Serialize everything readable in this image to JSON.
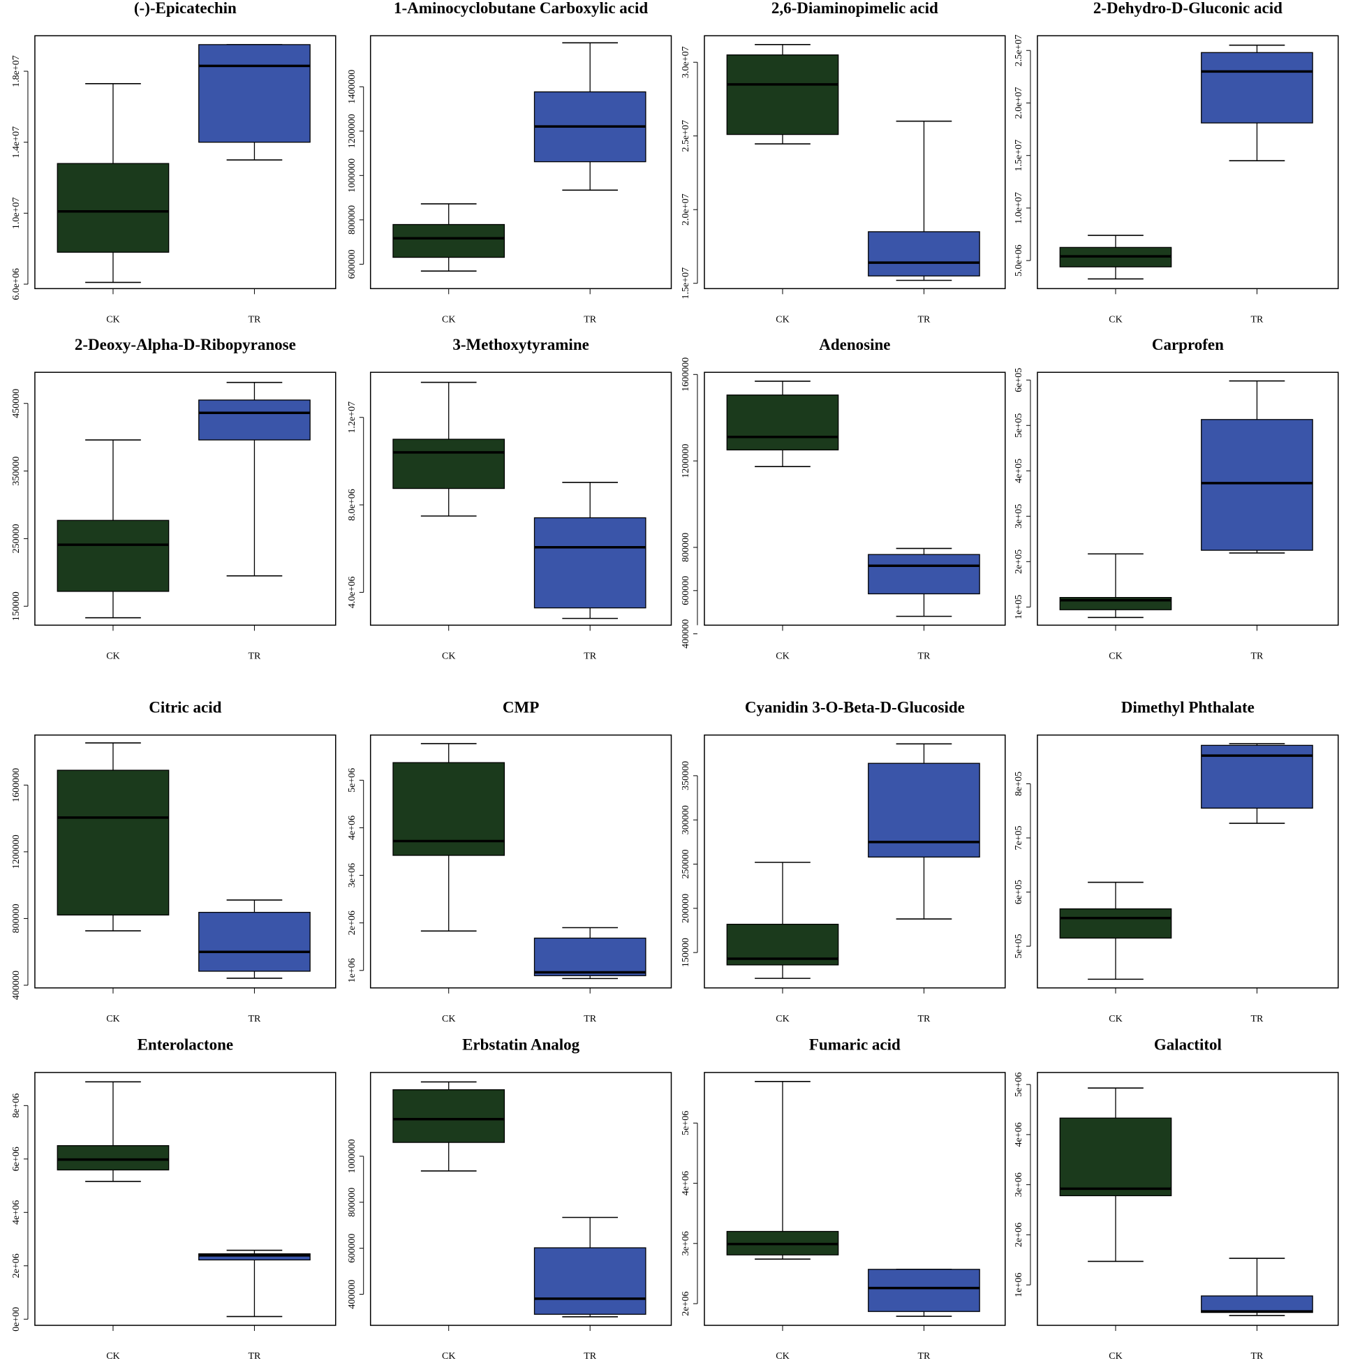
{
  "chart_data": [
    {
      "type": "box",
      "title": "(-)-Epicatechin",
      "categories": [
        "CK",
        "TR"
      ],
      "colors": [
        "#1b3a1c",
        "#3a55a9"
      ],
      "ylim": [
        5750000,
        20000000
      ],
      "yticks": [
        {
          "value": 6000000,
          "label": "6.0e+06"
        },
        {
          "value": 10000000,
          "label": "1.0e+07"
        },
        {
          "value": 14000000,
          "label": "1.4e+07"
        },
        {
          "value": 18000000,
          "label": "1.8e+07"
        }
      ],
      "boxes": [
        {
          "min": 6100000,
          "q1": 7800000,
          "median": 10100000,
          "q3": 12800000,
          "max": 17300000
        },
        {
          "min": 13000000,
          "q1": 14000000,
          "median": 18300000,
          "q3": 19500000,
          "max": 19500000
        }
      ]
    },
    {
      "type": "box",
      "title": "1-Aminocyclobutane Carboxylic acid",
      "categories": [
        "CK",
        "TR"
      ],
      "colors": [
        "#1b3a1c",
        "#3a55a9"
      ],
      "ylim": [
        490000,
        1630000
      ],
      "yticks": [
        600000,
        800000,
        1000000,
        1200000,
        1400000
      ],
      "boxes": [
        {
          "min": 569000,
          "q1": 631000,
          "median": 717000,
          "q3": 779000,
          "max": 872000
        },
        {
          "min": 934000,
          "q1": 1062000,
          "median": 1221000,
          "q3": 1377000,
          "max": 1598000
        }
      ]
    },
    {
      "type": "box",
      "title": "2,6-Diaminopimelic acid",
      "categories": [
        "CK",
        "TR"
      ],
      "colors": [
        "#1b3a1c",
        "#3a55a9"
      ],
      "ylim": [
        14640000,
        31800000
      ],
      "yticks": [
        {
          "value": 15000000,
          "label": "1.5e+07"
        },
        {
          "value": 20000000,
          "label": "2.0e+07"
        },
        {
          "value": 25000000,
          "label": "2.5e+07"
        },
        {
          "value": 30000000,
          "label": "3.0e+07"
        }
      ],
      "boxes": [
        {
          "min": 24460000,
          "q1": 25100000,
          "median": 28500000,
          "q3": 30500000,
          "max": 31200000
        },
        {
          "min": 15200000,
          "q1": 15500000,
          "median": 16400000,
          "q3": 18500000,
          "max": 26000000
        }
      ]
    },
    {
      "type": "box",
      "title": "2-Dehydro-D-Gluconic acid",
      "categories": [
        "CK",
        "TR"
      ],
      "colors": [
        "#1b3a1c",
        "#3a55a9"
      ],
      "ylim": [
        2330000,
        26400000
      ],
      "yticks": [
        {
          "value": 5000000,
          "label": "5.0e+06"
        },
        {
          "value": 10000000,
          "label": "1.0e+07"
        },
        {
          "value": 15000000,
          "label": "1.5e+07"
        },
        {
          "value": 20000000,
          "label": "2.0e+07"
        },
        {
          "value": 25000000,
          "label": "2.5e+07"
        }
      ],
      "boxes": [
        {
          "min": 3250000,
          "q1": 4400000,
          "median": 5400000,
          "q3": 6250000,
          "max": 7400000
        },
        {
          "min": 14500000,
          "q1": 18100000,
          "median": 23000000,
          "q3": 24800000,
          "max": 25500000
        }
      ]
    },
    {
      "type": "box",
      "title": "2-Deoxy-Alpha-D-Ribopyranose",
      "categories": [
        "CK",
        "TR"
      ],
      "colors": [
        "#1b3a1c",
        "#3a55a9"
      ],
      "ylim": [
        122000,
        496000
      ],
      "yticks": [
        150000,
        250000,
        350000,
        450000
      ],
      "boxes": [
        {
          "min": 133000,
          "q1": 172000,
          "median": 241000,
          "q3": 277000,
          "max": 396000
        },
        {
          "min": 195000,
          "q1": 396000,
          "median": 436000,
          "q3": 455000,
          "max": 481000
        }
      ]
    },
    {
      "type": "box",
      "title": "3-Methoxytyramine",
      "categories": [
        "CK",
        "TR"
      ],
      "colors": [
        "#1b3a1c",
        "#3a55a9"
      ],
      "ylim": [
        2500000,
        14060000
      ],
      "yticks": [
        {
          "value": 4000000,
          "label": "4.0e+06"
        },
        {
          "value": 8000000,
          "label": "8.0e+06"
        },
        {
          "value": 12000000,
          "label": "1.2e+07"
        }
      ],
      "boxes": [
        {
          "min": 7490000,
          "q1": 8750000,
          "median": 10400000,
          "q3": 11000000,
          "max": 13600000
        },
        {
          "min": 2810000,
          "q1": 3290000,
          "median": 6060000,
          "q3": 7410000,
          "max": 9030000
        }
      ]
    },
    {
      "type": "box",
      "title": "Adenosine",
      "categories": [
        "CK",
        "TR"
      ],
      "colors": [
        "#1b3a1c",
        "#3a55a9"
      ],
      "ylim": [
        440000,
        1610000
      ],
      "yticks": [
        400000,
        600000,
        800000,
        1200000,
        1600000
      ],
      "boxes": [
        {
          "min": 1174000,
          "q1": 1251000,
          "median": 1311000,
          "q3": 1505000,
          "max": 1569000
        },
        {
          "min": 481000,
          "q1": 585000,
          "median": 715000,
          "q3": 767000,
          "max": 795000
        }
      ]
    },
    {
      "type": "box",
      "title": "Carprofen",
      "categories": [
        "CK",
        "TR"
      ],
      "colors": [
        "#1b3a1c",
        "#3a55a9"
      ],
      "ylim": [
        60000,
        617000
      ],
      "yticks": [
        {
          "value": 100000,
          "label": "1e+05"
        },
        {
          "value": 200000,
          "label": "2e+05"
        },
        {
          "value": 300000,
          "label": "3e+05"
        },
        {
          "value": 400000,
          "label": "4e+05"
        },
        {
          "value": 500000,
          "label": "5e+05"
        },
        {
          "value": 600000,
          "label": "6e+05"
        }
      ],
      "boxes": [
        {
          "min": 77000,
          "q1": 94000,
          "median": 115000,
          "q3": 121000,
          "max": 217000
        },
        {
          "min": 219000,
          "q1": 225000,
          "median": 373000,
          "q3": 513000,
          "max": 598000
        }
      ]
    },
    {
      "type": "box",
      "title": "Citric acid",
      "categories": [
        "CK",
        "TR"
      ],
      "colors": [
        "#1b3a1c",
        "#3a55a9"
      ],
      "ylim": [
        384000,
        1900000
      ],
      "yticks": [
        400000,
        800000,
        1200000,
        1600000
      ],
      "boxes": [
        {
          "min": 726000,
          "q1": 821000,
          "median": 1405000,
          "q3": 1689000,
          "max": 1853000
        },
        {
          "min": 442000,
          "q1": 484000,
          "median": 600000,
          "q3": 837000,
          "max": 911000
        }
      ]
    },
    {
      "type": "box",
      "title": "CMP",
      "categories": [
        "CK",
        "TR"
      ],
      "colors": [
        "#1b3a1c",
        "#3a55a9"
      ],
      "ylim": [
        633000,
        5950000
      ],
      "yticks": [
        {
          "value": 1000000,
          "label": "1e+06"
        },
        {
          "value": 2000000,
          "label": "2e+06"
        },
        {
          "value": 3000000,
          "label": "3e+06"
        },
        {
          "value": 4000000,
          "label": "4e+06"
        },
        {
          "value": 5000000,
          "label": "5e+06"
        }
      ],
      "boxes": [
        {
          "min": 1830000,
          "q1": 3420000,
          "median": 3720000,
          "q3": 5370000,
          "max": 5770000
        },
        {
          "min": 830000,
          "q1": 890000,
          "median": 960000,
          "q3": 1680000,
          "max": 1900000
        }
      ]
    },
    {
      "type": "box",
      "title": "Cyanidin 3-O-Beta-D-Glucoside",
      "categories": [
        "CK",
        "TR"
      ],
      "colors": [
        "#1b3a1c",
        "#3a55a9"
      ],
      "ylim": [
        110000,
        396000
      ],
      "yticks": [
        150000,
        200000,
        250000,
        300000,
        350000
      ],
      "boxes": [
        {
          "min": 120800,
          "q1": 136000,
          "median": 143000,
          "q3": 182000,
          "max": 252000
        },
        {
          "min": 188000,
          "q1": 258000,
          "median": 275000,
          "q3": 364000,
          "max": 386000
        }
      ]
    },
    {
      "type": "box",
      "title": "Dimethyl Phthalate",
      "categories": [
        "CK",
        "TR"
      ],
      "colors": [
        "#1b3a1c",
        "#3a55a9"
      ],
      "ylim": [
        423000,
        890000
      ],
      "yticks": [
        {
          "value": 500000,
          "label": "5e+05"
        },
        {
          "value": 600000,
          "label": "6e+05"
        },
        {
          "value": 700000,
          "label": "7e+05"
        },
        {
          "value": 800000,
          "label": "8e+05"
        }
      ],
      "boxes": [
        {
          "min": 439000,
          "q1": 515000,
          "median": 552000,
          "q3": 569000,
          "max": 618000
        },
        {
          "min": 727000,
          "q1": 755000,
          "median": 852000,
          "q3": 871000,
          "max": 874000
        }
      ]
    },
    {
      "type": "box",
      "title": "Enterolactone",
      "categories": [
        "CK",
        "TR"
      ],
      "colors": [
        "#1b3a1c",
        "#3a55a9"
      ],
      "ylim": [
        -230000,
        9240000
      ],
      "yticks": [
        {
          "value": 0,
          "label": "0e+00"
        },
        {
          "value": 2000000,
          "label": "2e+06"
        },
        {
          "value": 4000000,
          "label": "4e+06"
        },
        {
          "value": 6000000,
          "label": "6e+06"
        },
        {
          "value": 8000000,
          "label": "8e+06"
        }
      ],
      "boxes": [
        {
          "min": 5160000,
          "q1": 5590000,
          "median": 5980000,
          "q3": 6500000,
          "max": 8890000
        },
        {
          "min": 100000,
          "q1": 2220000,
          "median": 2390000,
          "q3": 2450000,
          "max": 2580000
        }
      ]
    },
    {
      "type": "box",
      "title": "Erbstatin Analog",
      "categories": [
        "CK",
        "TR"
      ],
      "colors": [
        "#1b3a1c",
        "#3a55a9"
      ],
      "ylim": [
        265000,
        1364000
      ],
      "yticks": [
        400000,
        600000,
        800000,
        1000000
      ],
      "boxes": [
        {
          "min": 936000,
          "q1": 1060000,
          "median": 1161000,
          "q3": 1289000,
          "max": 1323000
        },
        {
          "min": 302000,
          "q1": 313000,
          "median": 381000,
          "q3": 602000,
          "max": 734000
        }
      ]
    },
    {
      "type": "box",
      "title": "Fumaric acid",
      "categories": [
        "CK",
        "TR"
      ],
      "colors": [
        "#1b3a1c",
        "#3a55a9"
      ],
      "ylim": [
        1640000,
        5840000
      ],
      "yticks": [
        {
          "value": 2000000,
          "label": "2e+06"
        },
        {
          "value": 3000000,
          "label": "3e+06"
        },
        {
          "value": 4000000,
          "label": "4e+06"
        },
        {
          "value": 5000000,
          "label": "5e+06"
        }
      ],
      "boxes": [
        {
          "min": 2740000,
          "q1": 2810000,
          "median": 2990000,
          "q3": 3200000,
          "max": 5690000
        },
        {
          "min": 1790000,
          "q1": 1870000,
          "median": 2260000,
          "q3": 2570000,
          "max": 2570000
        }
      ]
    },
    {
      "type": "box",
      "title": "Galactitol",
      "categories": [
        "CK",
        "TR"
      ],
      "colors": [
        "#1b3a1c",
        "#3a55a9"
      ],
      "ylim": [
        193000,
        5240000
      ],
      "yticks": [
        {
          "value": 1000000,
          "label": "1e+06"
        },
        {
          "value": 2000000,
          "label": "2e+06"
        },
        {
          "value": 3000000,
          "label": "3e+06"
        },
        {
          "value": 4000000,
          "label": "4e+06"
        },
        {
          "value": 5000000,
          "label": "5e+06"
        }
      ],
      "boxes": [
        {
          "min": 1470000,
          "q1": 2780000,
          "median": 2920000,
          "q3": 4330000,
          "max": 4930000
        },
        {
          "min": 390000,
          "q1": 450000,
          "median": 470000,
          "q3": 780000,
          "max": 1530000
        }
      ]
    }
  ]
}
